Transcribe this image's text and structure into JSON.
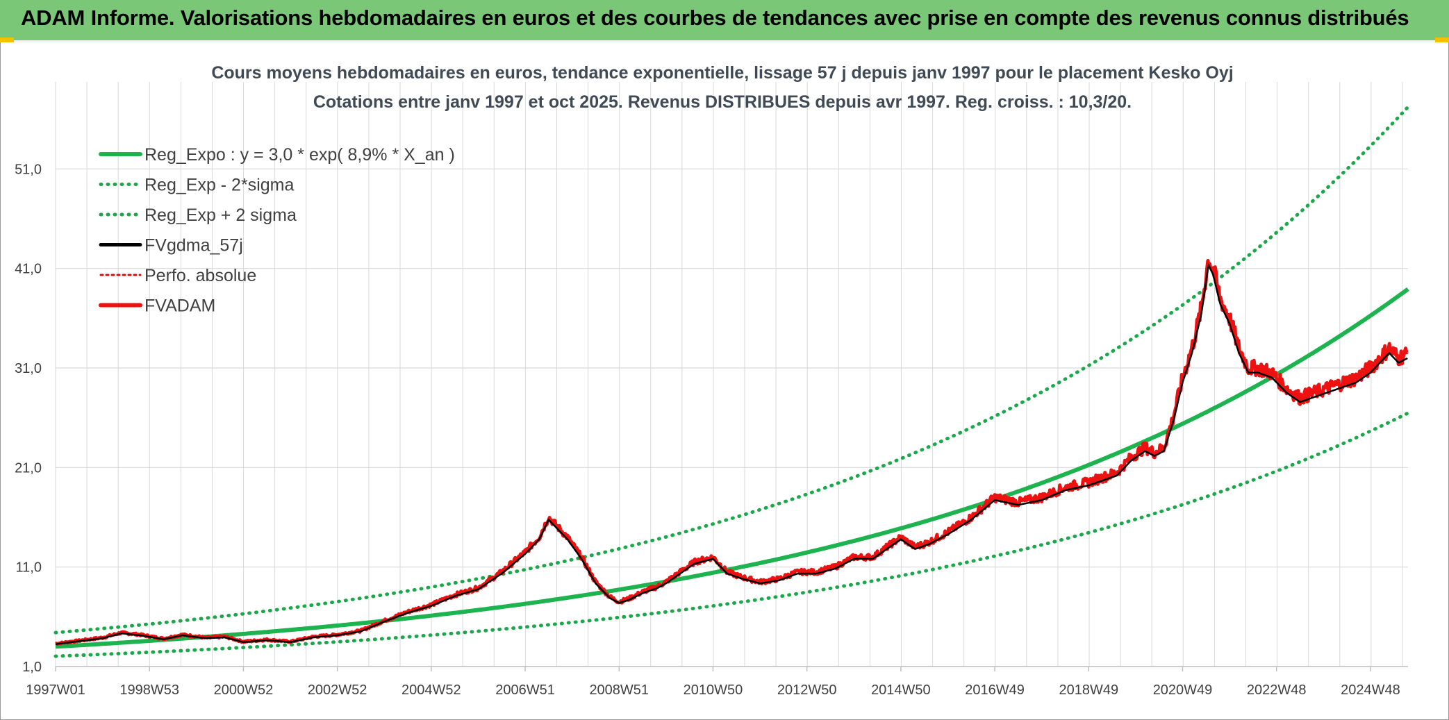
{
  "banner": {
    "title": "ADAM Informe. Valorisations hebdomadaires en euros et des courbes de tendances avec prise en compte des revenus connus distribués"
  },
  "colors": {
    "banner": "#79c777",
    "reg_expo": "#1db34f",
    "sigma": "#1aa84a",
    "fvgdma": "#000000",
    "fvadam": "#ee1111",
    "perfo": "#d01010",
    "grid": "#d9d9d9"
  },
  "chart_data": {
    "type": "line",
    "title": "Cours moyens hebdomadaires en euros, tendance exponentielle, lissage 57 j depuis janv 1997 pour le placement Kesko Oyj",
    "subtitle": "Cotations entre janv 1997 et oct 2025. Revenus DISTRIBUES depuis avr 1997. Reg. croiss. : 10,3/20.",
    "xlabel": "",
    "ylabel": "",
    "ylim": [
      1,
      61
    ],
    "xlim": [
      1997.0,
      2025.8
    ],
    "y_ticks": [
      "1,0",
      "11,0",
      "21,0",
      "31,0",
      "41,0",
      "51,0"
    ],
    "y_tick_values": [
      1,
      11,
      21,
      31,
      41,
      51
    ],
    "x_ticks": [
      "1997W01",
      "1998W53",
      "2000W52",
      "2002W52",
      "2004W52",
      "2006W51",
      "2008W51",
      "2010W50",
      "2012W50",
      "2014W50",
      "2016W49",
      "2018W49",
      "2020W49",
      "2022W48",
      "2024W48"
    ],
    "x_tick_values": [
      1997.0,
      1999.0,
      2001.0,
      2003.0,
      2005.0,
      2007.0,
      2009.0,
      2011.0,
      2013.0,
      2015.0,
      2017.0,
      2019.0,
      2021.0,
      2023.0,
      2025.0
    ],
    "grid": true,
    "legend_position": "top-left",
    "series": [
      {
        "name": "Reg_Expo : y = 3,0 * exp( 8,9% *  X_an )",
        "style": "solid-green",
        "formula": {
          "a": 3.0,
          "b": 0.089,
          "factor": 1.0
        }
      },
      {
        "name": "Reg_Exp - 2*sigma",
        "style": "dotted-green",
        "formula": {
          "a": 3.0,
          "b": 0.089,
          "factor": 0.68
        }
      },
      {
        "name": "Reg_Exp + 2 sigma",
        "style": "dotted-green",
        "formula": {
          "a": 3.0,
          "b": 0.089,
          "factor": 1.47
        }
      },
      {
        "name": "FVgdma_57j",
        "style": "solid-black"
      },
      {
        "name": "Perfo. absolue",
        "style": "dotted-red"
      },
      {
        "name": "FVADAM",
        "style": "solid-red"
      }
    ],
    "price_points": {
      "x": [
        1997.0,
        1997.5,
        1998.0,
        1998.4,
        1998.8,
        1999.3,
        1999.7,
        2000.2,
        2000.6,
        2001.0,
        2001.5,
        2002.0,
        2002.5,
        2003.0,
        2003.5,
        2004.0,
        2004.5,
        2005.0,
        2005.5,
        2006.0,
        2006.5,
        2007.0,
        2007.3,
        2007.5,
        2007.7,
        2007.9,
        2008.2,
        2008.5,
        2008.8,
        2009.0,
        2009.2,
        2009.5,
        2009.8,
        2010.0,
        2010.3,
        2010.6,
        2011.0,
        2011.3,
        2011.6,
        2012.0,
        2012.4,
        2012.8,
        2013.2,
        2013.6,
        2014.0,
        2014.4,
        2014.7,
        2015.0,
        2015.3,
        2015.6,
        2016.0,
        2016.5,
        2017.0,
        2017.5,
        2018.0,
        2018.5,
        2019.0,
        2019.3,
        2019.6,
        2019.9,
        2020.2,
        2020.4,
        2020.6,
        2020.8,
        2021.0,
        2021.2,
        2021.4,
        2021.55,
        2021.65,
        2021.8,
        2022.0,
        2022.2,
        2022.4,
        2022.6,
        2022.9,
        2023.2,
        2023.5,
        2023.8,
        2024.1,
        2024.4,
        2024.7,
        2025.0,
        2025.2,
        2025.4,
        2025.6,
        2025.8
      ],
      "y": [
        3.3,
        3.6,
        3.9,
        4.4,
        4.2,
        3.8,
        4.2,
        3.9,
        4.0,
        3.5,
        3.7,
        3.5,
        4.0,
        4.2,
        4.6,
        5.6,
        6.5,
        7.2,
        8.2,
        8.9,
        10.5,
        12.5,
        14.0,
        16.0,
        15.0,
        14.0,
        12.0,
        9.5,
        8.0,
        7.5,
        7.8,
        8.5,
        9.0,
        9.5,
        10.5,
        11.5,
        12.0,
        10.5,
        10.0,
        9.5,
        9.8,
        10.5,
        10.5,
        11.0,
        12.0,
        12.0,
        13.0,
        14.0,
        13.0,
        13.5,
        14.5,
        16.0,
        18.0,
        17.5,
        18.0,
        19.0,
        19.5,
        20.0,
        20.5,
        22.0,
        23.0,
        22.5,
        23.0,
        26.0,
        30.0,
        33.0,
        37.0,
        42.0,
        41.0,
        38.0,
        36.0,
        33.0,
        31.0,
        31.0,
        30.5,
        29.0,
        28.0,
        28.5,
        29.0,
        29.5,
        30.0,
        31.0,
        32.0,
        33.0,
        32.0,
        32.5
      ]
    }
  }
}
